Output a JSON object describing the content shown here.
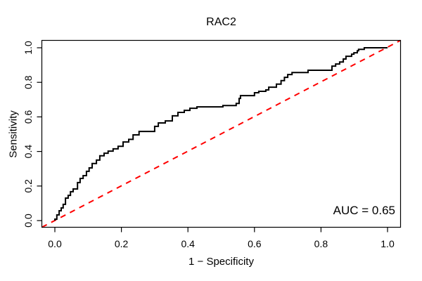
{
  "chart_data": {
    "type": "line",
    "title": "RAC2",
    "xlabel": "1 − Specificity",
    "ylabel": "Sensitivity",
    "xlim": [
      0,
      1
    ],
    "ylim": [
      0,
      1
    ],
    "x_ticks": [
      0,
      0.2,
      0.4,
      0.6,
      0.8,
      1.0
    ],
    "y_ticks": [
      0,
      0.2,
      0.4,
      0.6,
      0.8,
      1.0
    ],
    "x_tick_labels": [
      "0.0",
      "0.2",
      "0.4",
      "0.6",
      "0.8",
      "1.0"
    ],
    "y_tick_labels": [
      "0.0",
      "0.2",
      "0.4",
      "0.6",
      "0.8",
      "1.0"
    ],
    "grid": false,
    "legend_position": "none",
    "auc": 0.65,
    "annotations": [
      {
        "text": "AUC = 0.65",
        "x": 0.98,
        "y": 0.06,
        "align": "right"
      }
    ],
    "colors": {
      "roc_curve": "#000000",
      "reference_line": "#FF0000",
      "axis": "#000000",
      "background": "#FFFFFF"
    },
    "series": [
      {
        "name": "ROC curve",
        "type": "step",
        "color": "#000000",
        "linewidth": 2,
        "dash": "solid",
        "points": [
          [
            0,
            0
          ],
          [
            0,
            0.008
          ],
          [
            0.006,
            0.008
          ],
          [
            0.006,
            0.033
          ],
          [
            0.013,
            0.033
          ],
          [
            0.013,
            0.057
          ],
          [
            0.019,
            0.057
          ],
          [
            0.019,
            0.073
          ],
          [
            0.025,
            0.073
          ],
          [
            0.025,
            0.094
          ],
          [
            0.032,
            0.094
          ],
          [
            0.032,
            0.13
          ],
          [
            0.04,
            0.13
          ],
          [
            0.04,
            0.146
          ],
          [
            0.047,
            0.146
          ],
          [
            0.047,
            0.167
          ],
          [
            0.055,
            0.167
          ],
          [
            0.055,
            0.183
          ],
          [
            0.068,
            0.183
          ],
          [
            0.068,
            0.22
          ],
          [
            0.076,
            0.22
          ],
          [
            0.076,
            0.244
          ],
          [
            0.085,
            0.244
          ],
          [
            0.085,
            0.26
          ],
          [
            0.095,
            0.26
          ],
          [
            0.095,
            0.285
          ],
          [
            0.103,
            0.285
          ],
          [
            0.103,
            0.305
          ],
          [
            0.112,
            0.305
          ],
          [
            0.112,
            0.33
          ],
          [
            0.125,
            0.33
          ],
          [
            0.125,
            0.35
          ],
          [
            0.135,
            0.35
          ],
          [
            0.135,
            0.375
          ],
          [
            0.148,
            0.375
          ],
          [
            0.148,
            0.39
          ],
          [
            0.16,
            0.39
          ],
          [
            0.16,
            0.402
          ],
          [
            0.175,
            0.402
          ],
          [
            0.175,
            0.415
          ],
          [
            0.19,
            0.415
          ],
          [
            0.19,
            0.43
          ],
          [
            0.205,
            0.43
          ],
          [
            0.205,
            0.455
          ],
          [
            0.222,
            0.455
          ],
          [
            0.222,
            0.47
          ],
          [
            0.235,
            0.47
          ],
          [
            0.235,
            0.496
          ],
          [
            0.253,
            0.496
          ],
          [
            0.253,
            0.516
          ],
          [
            0.3,
            0.516
          ],
          [
            0.3,
            0.545
          ],
          [
            0.311,
            0.545
          ],
          [
            0.311,
            0.565
          ],
          [
            0.332,
            0.565
          ],
          [
            0.332,
            0.577
          ],
          [
            0.353,
            0.577
          ],
          [
            0.353,
            0.606
          ],
          [
            0.37,
            0.606
          ],
          [
            0.37,
            0.626
          ],
          [
            0.389,
            0.626
          ],
          [
            0.389,
            0.638
          ],
          [
            0.406,
            0.638
          ],
          [
            0.406,
            0.65
          ],
          [
            0.427,
            0.65
          ],
          [
            0.427,
            0.658
          ],
          [
            0.505,
            0.658
          ],
          [
            0.505,
            0.666
          ],
          [
            0.545,
            0.666
          ],
          [
            0.545,
            0.678
          ],
          [
            0.554,
            0.678
          ],
          [
            0.554,
            0.707
          ],
          [
            0.558,
            0.707
          ],
          [
            0.558,
            0.723
          ],
          [
            0.6,
            0.723
          ],
          [
            0.6,
            0.74
          ],
          [
            0.613,
            0.74
          ],
          [
            0.613,
            0.748
          ],
          [
            0.634,
            0.748
          ],
          [
            0.634,
            0.756
          ],
          [
            0.643,
            0.756
          ],
          [
            0.643,
            0.772
          ],
          [
            0.666,
            0.772
          ],
          [
            0.666,
            0.79
          ],
          [
            0.68,
            0.79
          ],
          [
            0.68,
            0.81
          ],
          [
            0.69,
            0.81
          ],
          [
            0.69,
            0.829
          ],
          [
            0.7,
            0.829
          ],
          [
            0.7,
            0.845
          ],
          [
            0.713,
            0.845
          ],
          [
            0.713,
            0.857
          ],
          [
            0.761,
            0.857
          ],
          [
            0.761,
            0.87
          ],
          [
            0.833,
            0.87
          ],
          [
            0.833,
            0.894
          ],
          [
            0.844,
            0.894
          ],
          [
            0.844,
            0.906
          ],
          [
            0.856,
            0.906
          ],
          [
            0.856,
            0.918
          ],
          [
            0.867,
            0.918
          ],
          [
            0.867,
            0.935
          ],
          [
            0.875,
            0.935
          ],
          [
            0.875,
            0.951
          ],
          [
            0.892,
            0.951
          ],
          [
            0.892,
            0.963
          ],
          [
            0.899,
            0.963
          ],
          [
            0.899,
            0.971
          ],
          [
            0.909,
            0.971
          ],
          [
            0.909,
            0.983
          ],
          [
            0.913,
            0.983
          ],
          [
            0.913,
            0.991
          ],
          [
            0.93,
            0.991
          ],
          [
            0.93,
            1
          ],
          [
            1,
            1
          ]
        ]
      },
      {
        "name": "Reference diagonal (chance line)",
        "type": "line",
        "color": "#FF0000",
        "linewidth": 2,
        "dash": "dashed",
        "points": [
          [
            0,
            0
          ],
          [
            1,
            1
          ]
        ]
      }
    ]
  }
}
